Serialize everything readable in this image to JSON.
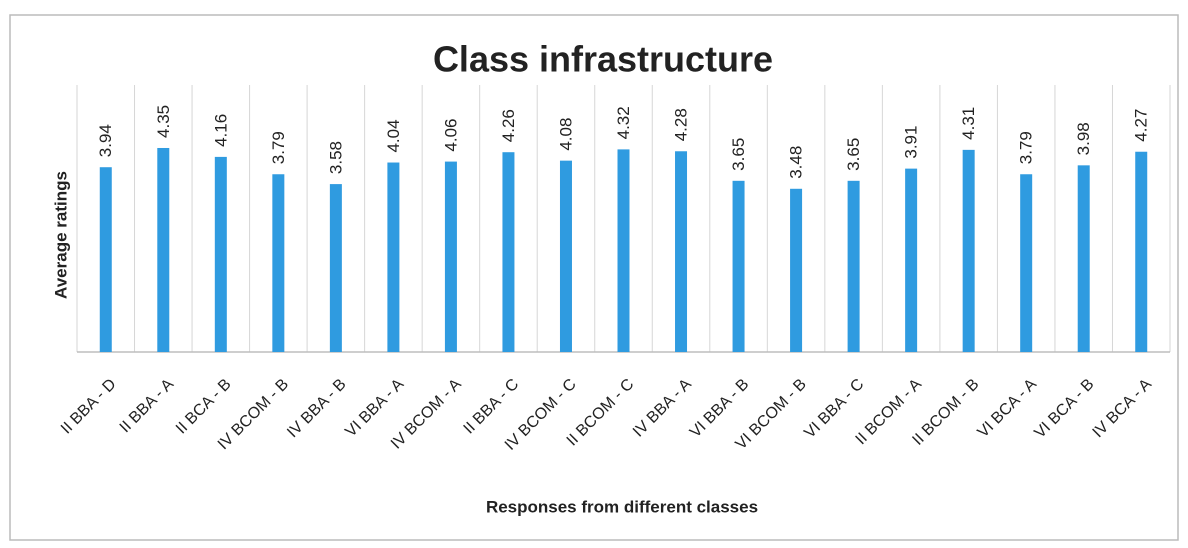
{
  "chart_data": {
    "type": "bar",
    "title": "Class infrastructure",
    "y_label": "Average ratings",
    "x_label": "Responses from different classes",
    "categories": [
      "II BBA - D",
      "II BBA - A",
      "II BCA - B",
      "IV BCOM - B",
      "IV BBA - B",
      "VI BBA - A",
      "IV BCOM - A",
      "II BBA - C",
      "IV BCOM - C",
      "II BCOM - C",
      "IV BBA - A",
      "VI BBA - B",
      "VI BCOM - B",
      "VI BBA - C",
      "II BCOM - A",
      "II BCOM - B",
      "VI BCA - A",
      "VI BCA - B",
      "IV BCA - A"
    ],
    "values": [
      3.94,
      4.35,
      4.16,
      3.79,
      3.58,
      4.04,
      4.06,
      4.26,
      4.08,
      4.32,
      4.28,
      3.65,
      3.48,
      3.65,
      3.91,
      4.31,
      3.79,
      3.98,
      4.27
    ],
    "color": "#2f9be0",
    "ylim": [
      0,
      5
    ],
    "grid": false
  }
}
